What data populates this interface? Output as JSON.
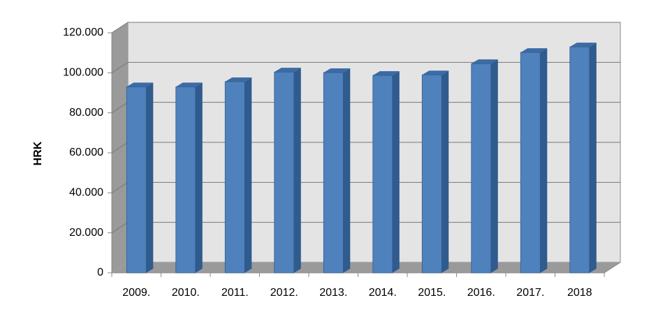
{
  "chart_data": {
    "type": "bar",
    "ylabel": "HRK",
    "categories": [
      "2009.",
      "2010.",
      "2011.",
      "2012.",
      "2013.",
      "2014.",
      "2015.",
      "2016.",
      "2017.",
      "2018"
    ],
    "values": [
      93000,
      93000,
      95600,
      100400,
      100100,
      98700,
      99000,
      104600,
      110200,
      113000
    ],
    "color": "#4f81bd",
    "ylim": [
      0,
      120000
    ],
    "yticks": [
      0,
      {
        "value": 20000,
        "label": "20.000"
      },
      {
        "value": 40000,
        "label": "40.000"
      },
      {
        "value": 60000,
        "label": "60.000"
      },
      {
        "value": 80000,
        "label": "80.000"
      },
      {
        "value": 100000,
        "label": "100.000"
      },
      {
        "value": 120000,
        "label": "120.000"
      }
    ],
    "grid": true
  }
}
